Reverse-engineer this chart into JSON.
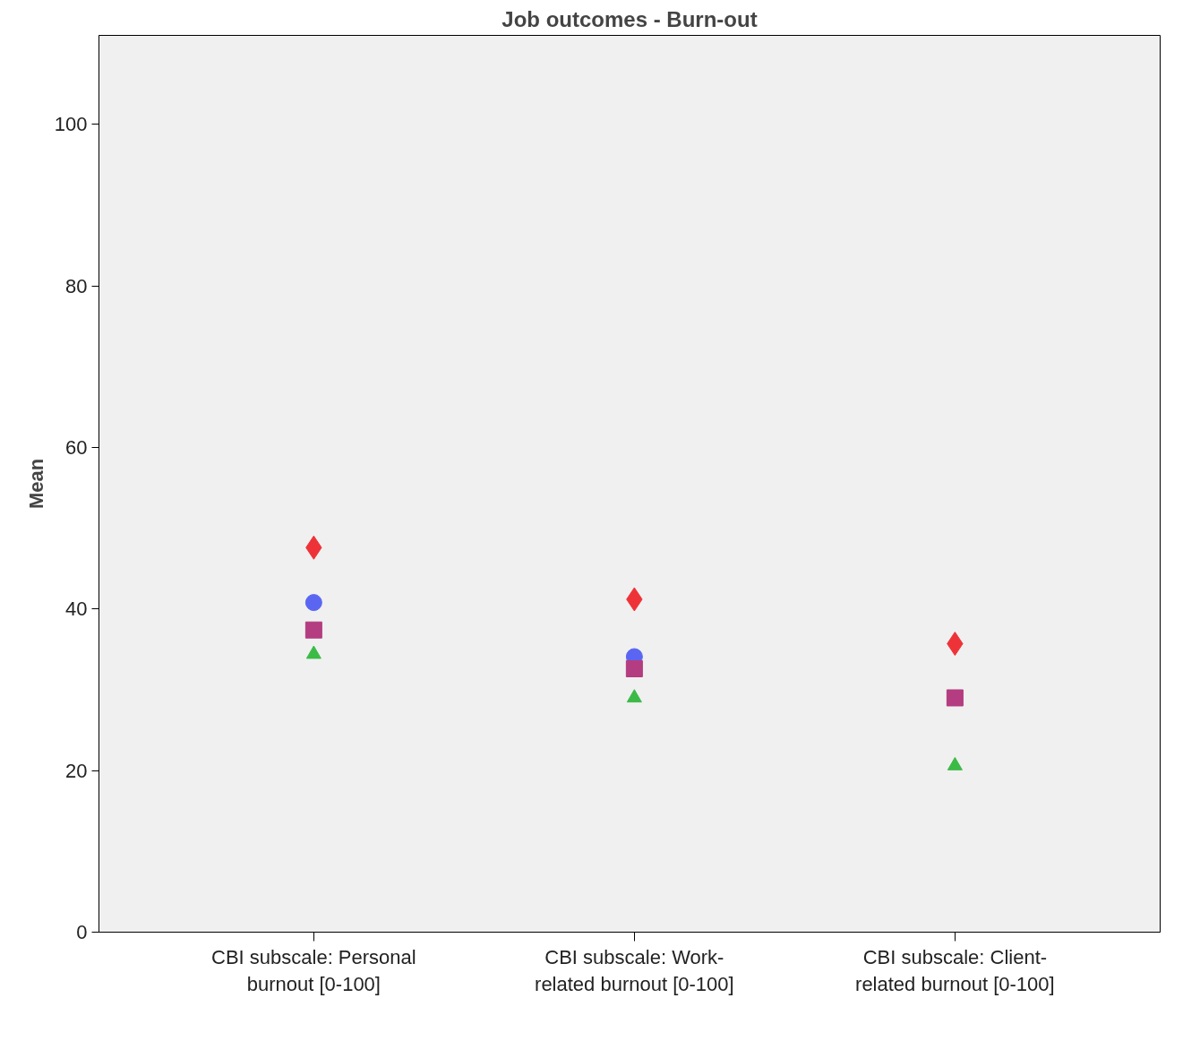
{
  "chart_data": {
    "type": "scatter",
    "title": "Job outcomes - Burn-out",
    "ylabel": "Mean",
    "categories": [
      "CBI subscale: Personal burnout [0-100]",
      "CBI subscale: Work-related burnout [0-100]",
      "CBI subscale: Client-related burnout [0-100]"
    ],
    "series": [
      {
        "color": "#ee3338",
        "marker": "diamond",
        "values": [
          47.6,
          41.2,
          35.7
        ]
      },
      {
        "color": "#5a66f2",
        "marker": "circle",
        "values": [
          40.8,
          34.1,
          null
        ]
      },
      {
        "color": "#b43c80",
        "marker": "square",
        "values": [
          37.4,
          32.6,
          29.0
        ]
      },
      {
        "color": "#3cba46",
        "marker": "triangle",
        "values": [
          34.4,
          29.0,
          20.6
        ]
      }
    ],
    "ylim": [
      0,
      111
    ],
    "yticks": [
      0,
      20,
      40,
      60,
      80,
      100
    ],
    "grid": false
  }
}
